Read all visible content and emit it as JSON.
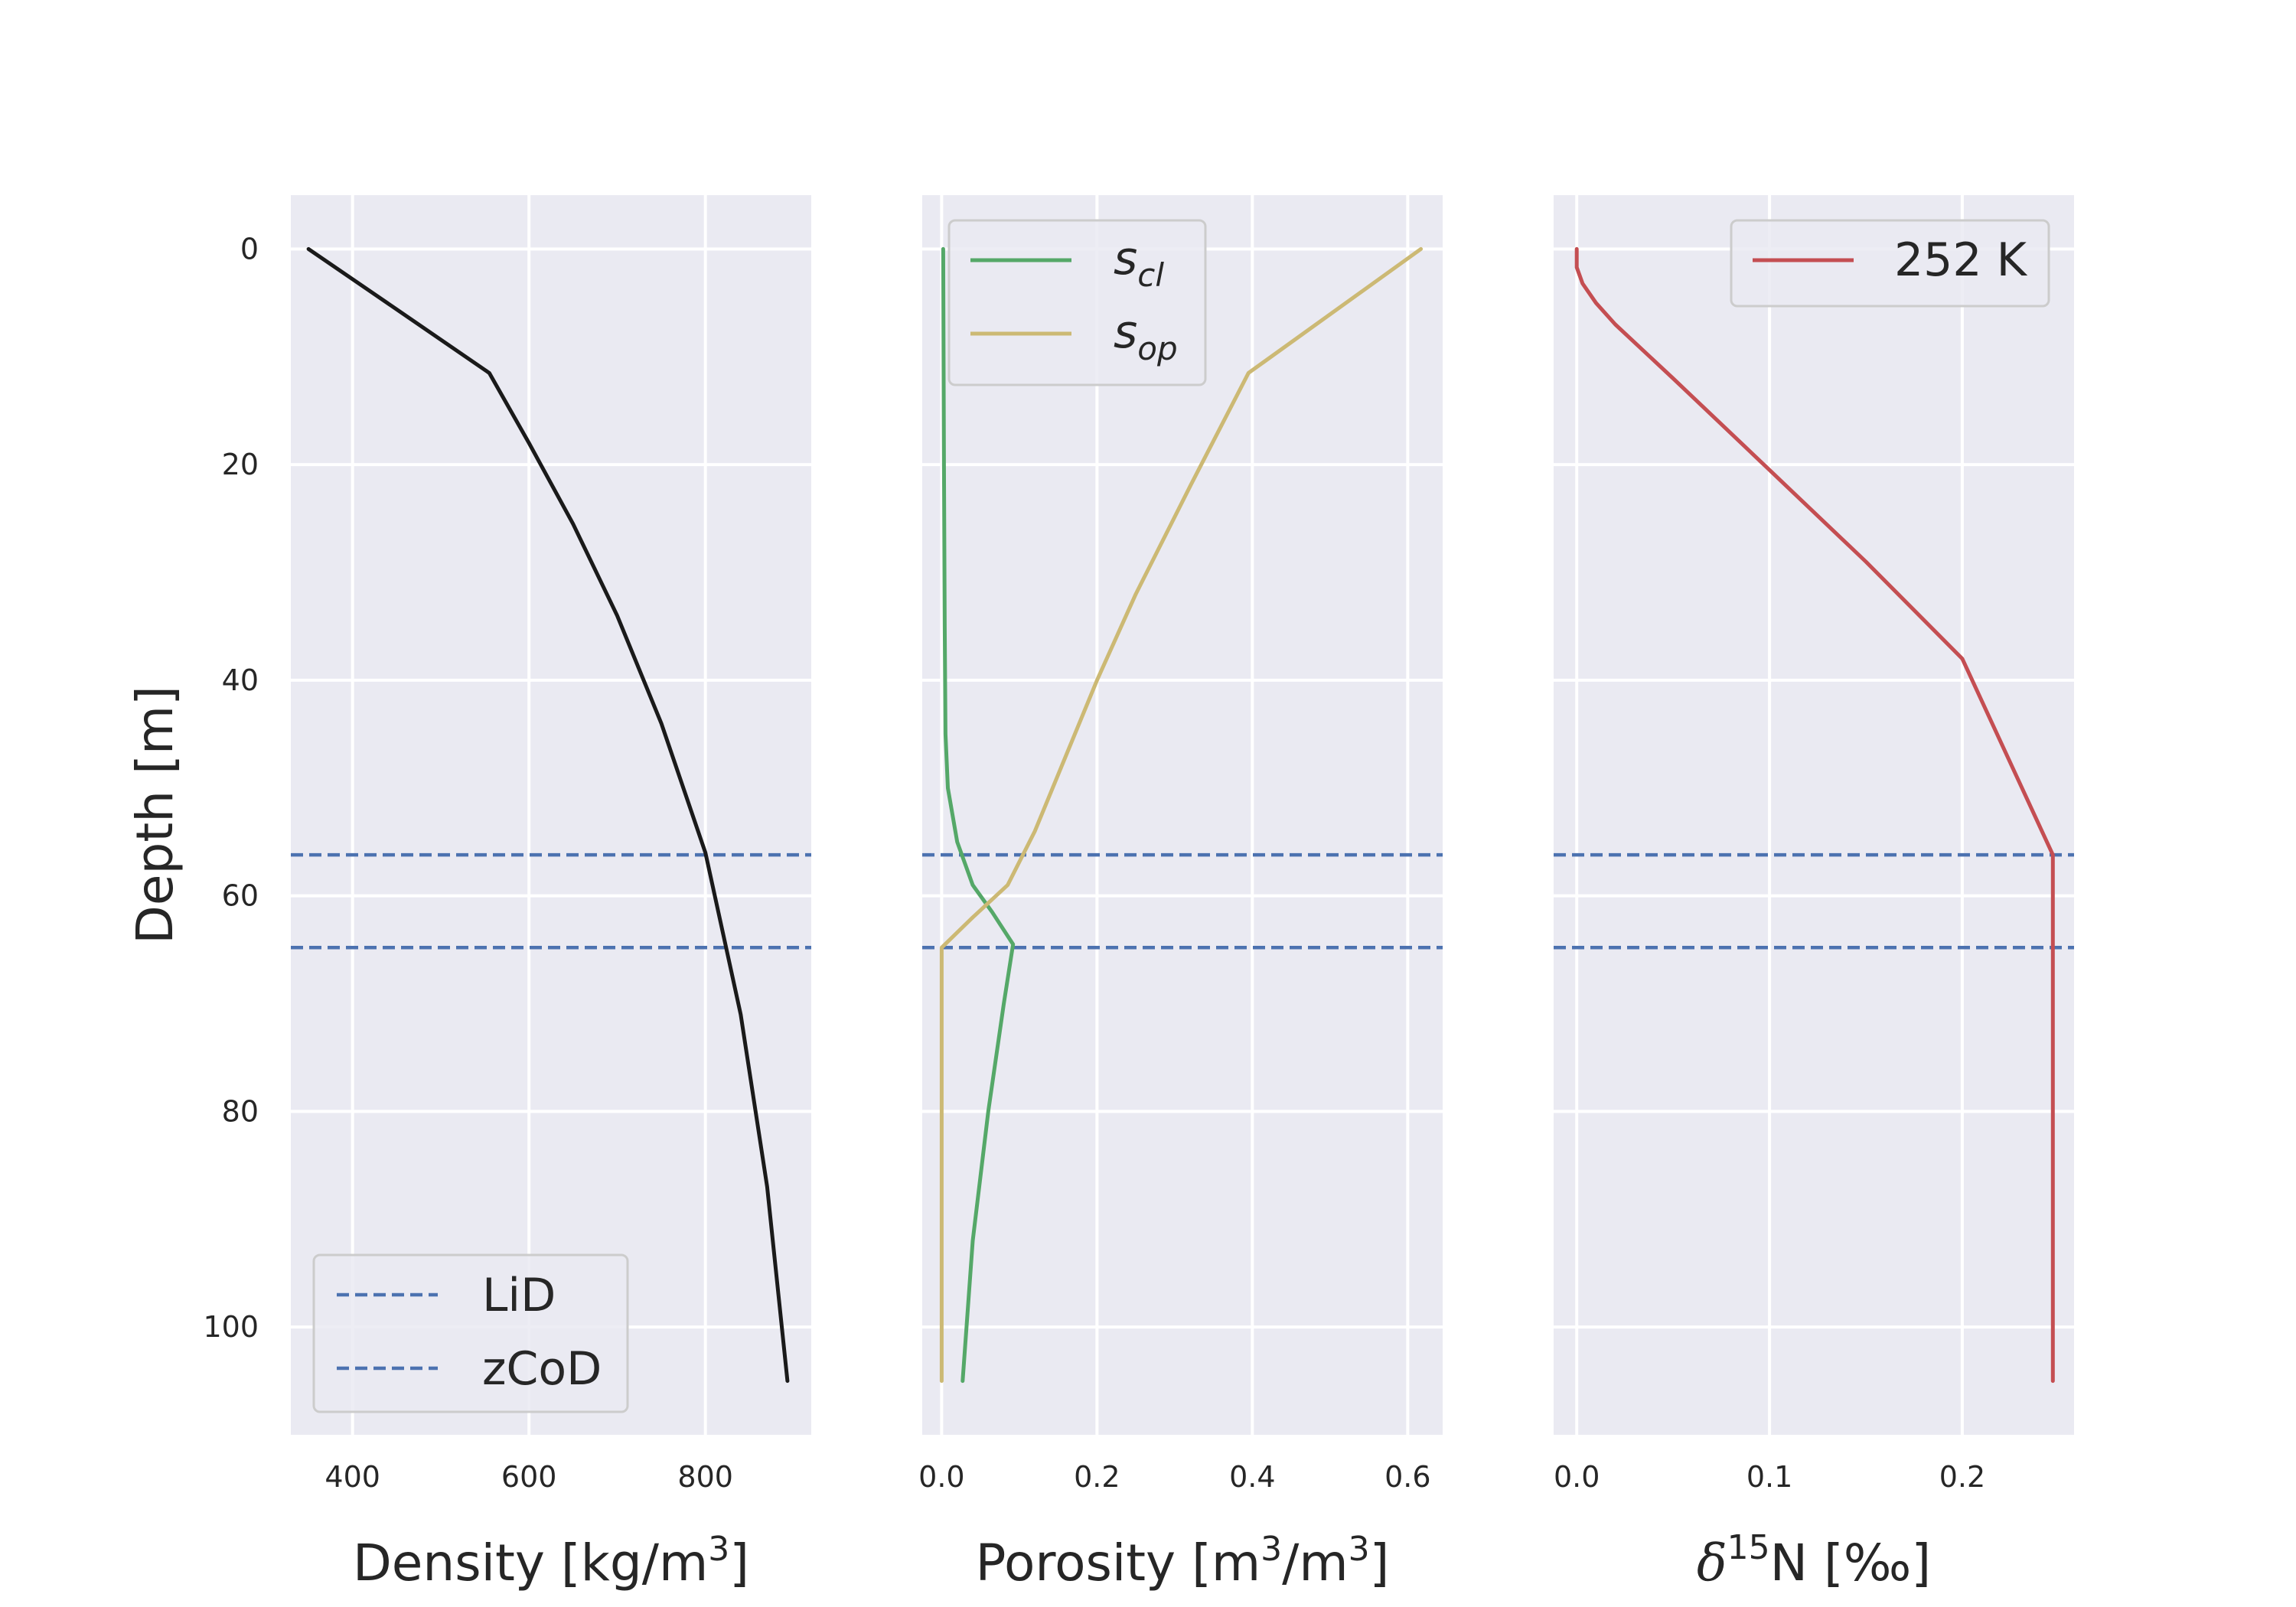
{
  "chart_data": [
    {
      "type": "line",
      "panel": "density",
      "xlabel_main": "Density [kg/m",
      "xlabel_sup": "3",
      "xlabel_tail": "]",
      "ylabel": "Depth [m]",
      "xlim": [
        330,
        920
      ],
      "ylim": [
        110,
        -5
      ],
      "xticks": [
        400,
        600,
        800
      ],
      "yticks": [
        0,
        20,
        40,
        60,
        80,
        100
      ],
      "grid": true,
      "series": [
        {
          "color": "#1a1a1a",
          "x": [
            350,
            450,
            555,
            600,
            650,
            700,
            750,
            800,
            840,
            870,
            893
          ],
          "y": [
            0,
            5.6,
            11.5,
            18,
            25.5,
            34,
            44,
            56,
            71,
            87,
            105
          ]
        }
      ],
      "hlines": [
        {
          "name": "LiD",
          "y": 56.2,
          "color": "#4c72b0",
          "style": "dashed"
        },
        {
          "name": "zCoD",
          "y": 64.8,
          "color": "#4c72b0",
          "style": "dashed"
        }
      ],
      "legend": {
        "placement": "lower-left",
        "entries": [
          "LiD",
          "zCoD"
        ]
      }
    },
    {
      "type": "line",
      "panel": "porosity",
      "xlabel_main": "Porosity [m",
      "xlabel_sup1": "3",
      "xlabel_mid": "/m",
      "xlabel_sup2": "3",
      "xlabel_tail": "]",
      "xlim": [
        -0.025,
        0.645
      ],
      "ylim": [
        110,
        -5
      ],
      "xticks": [
        0.0,
        0.2,
        0.4,
        0.6
      ],
      "xticklabels": [
        "0.0",
        "0.2",
        "0.4",
        "0.6"
      ],
      "grid": true,
      "series": [
        {
          "name_main": "s",
          "name_sub": "cl",
          "color": "#55a868",
          "x": [
            0.002,
            0.003,
            0.004,
            0.005,
            0.008,
            0.02,
            0.04,
            0.065,
            0.092,
            0.08,
            0.06,
            0.04,
            0.027
          ],
          "y": [
            0,
            20,
            35,
            45,
            50,
            55,
            59,
            61.5,
            64.5,
            70,
            80,
            92,
            105
          ]
        },
        {
          "name_main": "s",
          "name_sub": "op",
          "color": "#ccb974",
          "x": [
            0.617,
            0.395,
            0.32,
            0.25,
            0.2,
            0.16,
            0.12,
            0.085,
            0.04,
            0.0,
            0.0,
            0.0
          ],
          "y": [
            0,
            11.5,
            22,
            32,
            40,
            47,
            54,
            59,
            62,
            64.8,
            80,
            105
          ]
        }
      ],
      "hlines": [
        {
          "y": 56.2,
          "color": "#4c72b0",
          "style": "dashed"
        },
        {
          "y": 64.8,
          "color": "#4c72b0",
          "style": "dashed"
        }
      ],
      "legend": {
        "placement": "upper-left"
      }
    },
    {
      "type": "line",
      "panel": "d15n",
      "xlabel_delta": "δ",
      "xlabel_sup": "15",
      "xlabel_tail": "N [‰]",
      "xlim": [
        -0.012,
        0.258
      ],
      "ylim": [
        110,
        -5
      ],
      "xticks": [
        0.0,
        0.1,
        0.2
      ],
      "xticklabels": [
        "0.0",
        "0.1",
        "0.2"
      ],
      "grid": true,
      "series": [
        {
          "name": "252 K",
          "color": "#c44e52",
          "x": [
            0.0,
            0.0,
            0.003,
            0.01,
            0.02,
            0.05,
            0.1,
            0.15,
            0.2,
            0.247,
            0.247,
            0.247
          ],
          "y": [
            0,
            1.7,
            3.2,
            5,
            7,
            12,
            20.5,
            29,
            38,
            56.2,
            64.8,
            105
          ]
        }
      ],
      "hlines": [
        {
          "y": 56.2,
          "color": "#4c72b0",
          "style": "dashed"
        },
        {
          "y": 64.8,
          "color": "#4c72b0",
          "style": "dashed"
        }
      ],
      "legend": {
        "placement": "upper-right",
        "entries": [
          "252 K"
        ]
      }
    }
  ]
}
